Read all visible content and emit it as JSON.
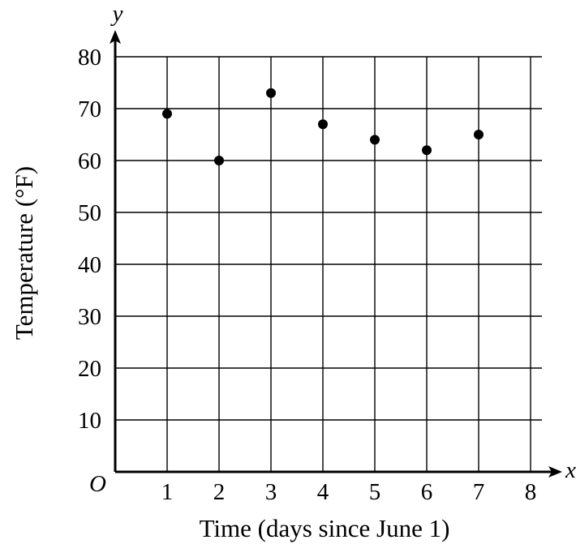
{
  "chart_data": {
    "type": "scatter",
    "x": [
      1,
      2,
      3,
      4,
      5,
      6,
      7
    ],
    "y": [
      69,
      60,
      73,
      67,
      64,
      62,
      65
    ],
    "xlabel": "Time (days since June 1)",
    "ylabel": "Temperature (°F)",
    "x_axis_variable": "x",
    "y_axis_variable": "y",
    "origin_label": "O",
    "xlim": [
      0,
      8
    ],
    "ylim": [
      0,
      80
    ],
    "x_ticks": [
      "1",
      "2",
      "3",
      "4",
      "5",
      "6",
      "7",
      "8"
    ],
    "y_ticks": [
      "10",
      "20",
      "30",
      "40",
      "50",
      "60",
      "70",
      "80"
    ],
    "grid": true,
    "point_color": "#000000"
  }
}
